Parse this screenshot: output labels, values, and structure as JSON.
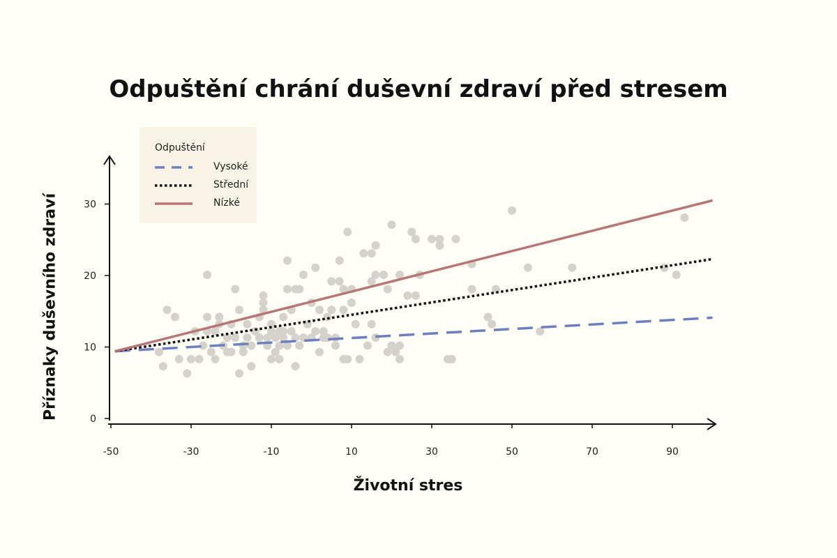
{
  "chart_data": {
    "type": "scatter",
    "title": "Odpuštění chrání duševní zdraví před stresem",
    "xlabel": "Životní stres",
    "ylabel": "Příznaky duševního zdraví",
    "xlim": [
      -50,
      100
    ],
    "ylim": [
      0,
      37
    ],
    "xticks": [
      -50,
      -30,
      -10,
      10,
      30,
      50,
      70,
      90
    ],
    "yticks": [
      0,
      10,
      20,
      30
    ],
    "grid": false,
    "legend": {
      "title": "Odpuštění",
      "position": "top-left",
      "items": [
        {
          "label": "Vysoké",
          "color": "#6d7fbf",
          "style": "dashed"
        },
        {
          "label": "Střední",
          "color": "#111111",
          "style": "dotted"
        },
        {
          "label": "Nízké",
          "color": "#b87575",
          "style": "solid"
        }
      ]
    },
    "lines": [
      {
        "name": "Vysoké",
        "color": "#6d7fbf",
        "style": "dashed",
        "x": [
          -49,
          100
        ],
        "y": [
          9.4,
          14.1
        ]
      },
      {
        "name": "Střední",
        "color": "#111111",
        "style": "dotted",
        "x": [
          -49,
          100
        ],
        "y": [
          9.4,
          22.3
        ]
      },
      {
        "name": "Nízké",
        "color": "#b87575",
        "style": "solid",
        "x": [
          -49,
          100
        ],
        "y": [
          9.4,
          30.5
        ]
      }
    ],
    "points_color": "#d4d2cb",
    "points": [
      [
        -38,
        9.3
      ],
      [
        -37,
        7.3
      ],
      [
        -34,
        14.2
      ],
      [
        -36,
        15.2
      ],
      [
        -33,
        8.3
      ],
      [
        -31,
        6.3
      ],
      [
        -30,
        8.3
      ],
      [
        -29,
        12.2
      ],
      [
        -28,
        8.3
      ],
      [
        -27,
        10.2
      ],
      [
        -26,
        12.2
      ],
      [
        -26,
        14.2
      ],
      [
        -26,
        20.1
      ],
      [
        -25,
        9.3
      ],
      [
        -24,
        12.2
      ],
      [
        -24,
        8.3
      ],
      [
        -23,
        13.2
      ],
      [
        -23,
        14.2
      ],
      [
        -22,
        10.2
      ],
      [
        -21,
        9.3
      ],
      [
        -21,
        11.3
      ],
      [
        -20,
        9.3
      ],
      [
        -20,
        13.2
      ],
      [
        -19,
        18.1
      ],
      [
        -19,
        11.3
      ],
      [
        -18,
        6.3
      ],
      [
        -18,
        15.2
      ],
      [
        -17,
        9.3
      ],
      [
        -17,
        10.2
      ],
      [
        -16,
        11.3
      ],
      [
        -16,
        13.2
      ],
      [
        -15,
        7.3
      ],
      [
        -15,
        10.2
      ],
      [
        -14,
        12.2
      ],
      [
        -13,
        14.2
      ],
      [
        -13,
        11.3
      ],
      [
        -12,
        15.2
      ],
      [
        -12,
        16.2
      ],
      [
        -12,
        17.2
      ],
      [
        -11,
        10.2
      ],
      [
        -11,
        11.3
      ],
      [
        -10,
        8.3
      ],
      [
        -10,
        12.2
      ],
      [
        -10,
        13.2
      ],
      [
        -9,
        9.3
      ],
      [
        -9,
        11.3
      ],
      [
        -8,
        8.3
      ],
      [
        -8,
        10.2
      ],
      [
        -8,
        12.2
      ],
      [
        -7,
        11.3
      ],
      [
        -7,
        14.2
      ],
      [
        -7,
        12.2
      ],
      [
        -6,
        10.2
      ],
      [
        -6,
        18.1
      ],
      [
        -6,
        22.1
      ],
      [
        -5,
        12.2
      ],
      [
        -5,
        15.2
      ],
      [
        -4,
        11.3
      ],
      [
        -4,
        18.1
      ],
      [
        -4,
        7.3
      ],
      [
        -3,
        10.2
      ],
      [
        -3,
        18.1
      ],
      [
        -2,
        11.3
      ],
      [
        -2,
        20.1
      ],
      [
        -1,
        13.2
      ],
      [
        0,
        16.2
      ],
      [
        0,
        11.3
      ],
      [
        1,
        12.2
      ],
      [
        1,
        21.1
      ],
      [
        2,
        9.3
      ],
      [
        2,
        15.2
      ],
      [
        3,
        11.3
      ],
      [
        3,
        12.2
      ],
      [
        4,
        11.3
      ],
      [
        4,
        14.2
      ],
      [
        5,
        19.2
      ],
      [
        5,
        15.2
      ],
      [
        6,
        11.3
      ],
      [
        6,
        10.2
      ],
      [
        7,
        22.1
      ],
      [
        7,
        19.2
      ],
      [
        8,
        15.2
      ],
      [
        8,
        18.1
      ],
      [
        8,
        8.3
      ],
      [
        9,
        8.3
      ],
      [
        9,
        26.1
      ],
      [
        10,
        16.2
      ],
      [
        10,
        18.1
      ],
      [
        11,
        13.2
      ],
      [
        12,
        8.3
      ],
      [
        13,
        23.1
      ],
      [
        14,
        10.2
      ],
      [
        15,
        19.2
      ],
      [
        15,
        23.1
      ],
      [
        15,
        13.2
      ],
      [
        16,
        24.2
      ],
      [
        16,
        20.1
      ],
      [
        16,
        11.3
      ],
      [
        18,
        20.1
      ],
      [
        19,
        18.1
      ],
      [
        19,
        9.3
      ],
      [
        20,
        27.1
      ],
      [
        20,
        10.2
      ],
      [
        21,
        9.3
      ],
      [
        22,
        10.2
      ],
      [
        22,
        20.1
      ],
      [
        22,
        8.3
      ],
      [
        24,
        17.2
      ],
      [
        25,
        26.1
      ],
      [
        26,
        17.2
      ],
      [
        26,
        25.1
      ],
      [
        27,
        20.1
      ],
      [
        30,
        25.1
      ],
      [
        32,
        25.1
      ],
      [
        32,
        24.2
      ],
      [
        34,
        8.3
      ],
      [
        35,
        8.3
      ],
      [
        36,
        25.1
      ],
      [
        40,
        18.1
      ],
      [
        40,
        21.6
      ],
      [
        44,
        14.2
      ],
      [
        45,
        13.2
      ],
      [
        46,
        18.1
      ],
      [
        50,
        29.1
      ],
      [
        54,
        21.1
      ],
      [
        57,
        12.2
      ],
      [
        65,
        21.1
      ],
      [
        88,
        21.1
      ],
      [
        91,
        20.1
      ],
      [
        93,
        28.1
      ]
    ]
  }
}
